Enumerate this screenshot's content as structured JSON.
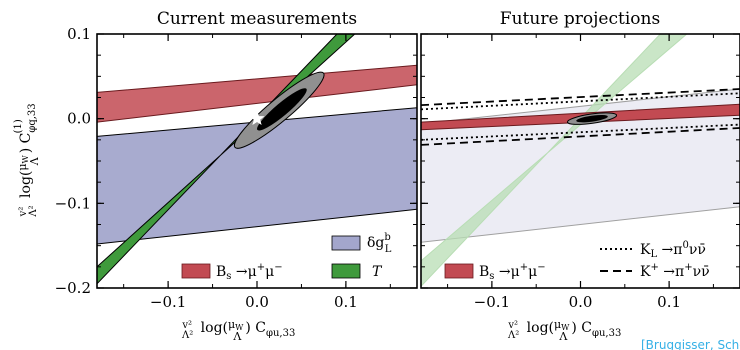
{
  "chart_data": [
    {
      "type": "area",
      "panel_title": "Current measurements",
      "x_range": [
        -0.18,
        0.18
      ],
      "y_range": [
        -0.2,
        0.1
      ],
      "x_ticks": [
        -0.1,
        0.0,
        0.1
      ],
      "x_tick_labels": [
        "−0.1",
        "0.0",
        "0.1"
      ],
      "y_ticks": [
        -0.2,
        -0.1,
        0.0,
        0.1
      ],
      "y_tick_labels": [
        "−0.2",
        "−0.1",
        "0.0",
        "0.1"
      ],
      "xlabel": "(v²/Λ²) log(μW/Λ) Cφu,33",
      "ylabel": "(v²/Λ²) log(μW/Λ) C(1)φq,33",
      "bands": [
        {
          "name": "δg^b_L",
          "color": "#a3a6cc",
          "edge": "#000000",
          "opacity": 0.95,
          "lower": [
            [
              -0.18,
              -0.148
            ],
            [
              0.18,
              -0.107
            ]
          ],
          "upper": [
            [
              -0.18,
              -0.021
            ],
            [
              0.18,
              0.013
            ]
          ]
        },
        {
          "name": "Bs→μ+μ−",
          "color": "#c24a52",
          "edge": "#6a1a1e",
          "opacity": 0.85,
          "lower": [
            [
              -0.18,
              -0.004
            ],
            [
              0.18,
              0.04
            ]
          ],
          "upper": [
            [
              -0.18,
              0.031
            ],
            [
              0.18,
              0.063
            ]
          ]
        },
        {
          "name": "T",
          "color": "#3f9a3c",
          "edge": "#000000",
          "opacity": 1,
          "lower": [
            [
              -0.18,
              -0.195
            ],
            [
              0.09,
              0.1
            ]
          ],
          "upper": [
            [
              -0.18,
              -0.175
            ],
            [
              0.11,
              0.1
            ]
          ]
        }
      ],
      "fit_ellipses": [
        {
          "level": "outer",
          "color": "#909090",
          "center": [
            0.025,
            0.01
          ],
          "semi_axes": [
            0.065,
            0.013
          ],
          "angle_deg": 40
        },
        {
          "level": "inner",
          "color": "#000000",
          "center": [
            0.028,
            0.011
          ],
          "semi_axes": [
            0.036,
            0.0075
          ],
          "angle_deg": 40
        }
      ],
      "best_fit": [
        0.0,
        0.0
      ],
      "legend": [
        {
          "label": "Bs→μ+μ−",
          "color": "#c24a52"
        },
        {
          "label": "T",
          "color": "#3f9a3c"
        },
        {
          "label": "δgbL",
          "color": "#a3a6cc"
        }
      ]
    },
    {
      "type": "area",
      "panel_title": "Future projections",
      "x_range": [
        -0.18,
        0.18
      ],
      "y_range": [
        -0.2,
        0.1
      ],
      "x_ticks": [
        -0.1,
        0.0,
        0.1
      ],
      "x_tick_labels": [
        "−0.1",
        "0.0",
        "0.1"
      ],
      "xlabel": "(v²/Λ²) log(μW/Λ) Cφu,33",
      "bands": [
        {
          "name": "δg^b_L projection",
          "color": "#ececf4",
          "edge": "#a0a0a0",
          "opacity": 1,
          "lower": [
            [
              -0.18,
              -0.146
            ],
            [
              0.18,
              -0.104
            ]
          ],
          "upper": [
            [
              -0.18,
              -0.006
            ],
            [
              0.18,
              0.035
            ]
          ]
        },
        {
          "name": "T projection",
          "color": "#b8ddb4",
          "edge": "#b8ddb4",
          "opacity": 0.75,
          "lower": [
            [
              -0.18,
              -0.198
            ],
            [
              0.09,
              0.1
            ]
          ],
          "upper": [
            [
              -0.18,
              -0.168
            ],
            [
              0.12,
              0.1
            ]
          ]
        },
        {
          "name": "Bs→μ+μ−",
          "color": "#c24a52",
          "edge": "#6a1a1e",
          "opacity": 1,
          "lower": [
            [
              -0.18,
              -0.013
            ],
            [
              0.18,
              0.004
            ]
          ],
          "upper": [
            [
              -0.18,
              -0.004
            ],
            [
              0.18,
              0.017
            ]
          ]
        }
      ],
      "lines": [
        {
          "name": "KL→π0νν̄",
          "style": "dotted",
          "y_left": [
            -0.025,
            0.011
          ],
          "y_right": [
            -0.007,
            0.03
          ]
        },
        {
          "name": "K+→π+νν̄",
          "style": "dashed",
          "y_left": [
            -0.031,
            0.016
          ],
          "y_right": [
            -0.011,
            0.035
          ]
        }
      ],
      "fit_ellipses": [
        {
          "level": "outer",
          "color": "#909090",
          "center": [
            0.013,
            0.0
          ],
          "semi_axes": [
            0.028,
            0.0055
          ],
          "angle_deg": 8
        },
        {
          "level": "inner",
          "color": "#000000",
          "center": [
            0.013,
            0.0
          ],
          "semi_axes": [
            0.018,
            0.0035
          ],
          "angle_deg": 8
        }
      ],
      "legend": [
        {
          "label": "Bs→μ+μ−",
          "color": "#c24a52"
        },
        {
          "label": "KL→π0νν̄",
          "style": "dotted"
        },
        {
          "label": "K+→π+νν̄",
          "style": "dashed"
        }
      ]
    }
  ],
  "citation": "[Bruggisser, Schoefbeck, Westhoff, Gisbert, Paraskevas, Zoccarato, Ortiz]"
}
